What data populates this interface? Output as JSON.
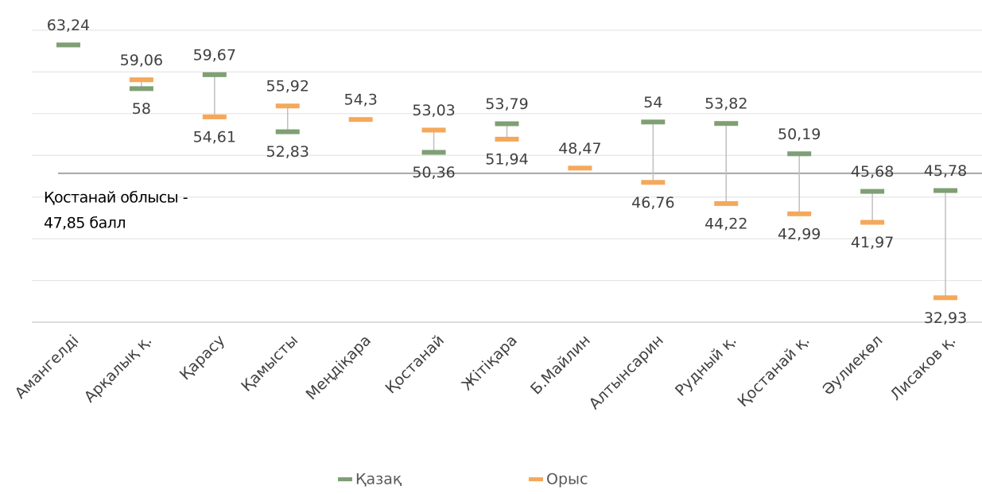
{
  "chart_data": {
    "type": "range_dot",
    "categories": [
      "Амангелді",
      "Арқалық қ.",
      "Қарасу",
      "Қамысты",
      "Меңдіқара",
      "Қостанай",
      "Жітіқара",
      "Б.Майлин",
      "Алтынсарин",
      "Рудный қ.",
      "Қостанай қ.",
      "Әулиекөл",
      "Лисаков қ."
    ],
    "series": [
      {
        "name": "Қазақ",
        "color": "#7f9f74",
        "values": [
          63.24,
          58,
          59.67,
          52.83,
          null,
          50.36,
          53.79,
          null,
          54,
          53.82,
          50.19,
          45.68,
          45.78
        ],
        "value_labels": [
          "63,24",
          "58",
          "59,67",
          "52,83",
          null,
          "50,36",
          "53,79",
          null,
          "54",
          "53,82",
          "50,19",
          "45,68",
          "45,78"
        ]
      },
      {
        "name": "Орыс",
        "color": "#f5a85a",
        "values": [
          null,
          59.06,
          54.61,
          55.92,
          54.3,
          53.03,
          51.94,
          48.47,
          46.76,
          44.22,
          42.99,
          41.97,
          32.93
        ],
        "value_labels": [
          null,
          "59,06",
          "54,61",
          "55,92",
          "54,3",
          "53,03",
          "51,94",
          "48,47",
          "46,76",
          "44,22",
          "42,99",
          "41,97",
          "32,93"
        ]
      }
    ],
    "reference_line": {
      "value": 47.85,
      "label_lines": [
        "Қостанай облысы -",
        "47,85 балл"
      ]
    },
    "ylim": [
      30,
      65
    ],
    "yticks": [
      30,
      35,
      40,
      45,
      50,
      55,
      60,
      65
    ],
    "grid": true,
    "legend": "bottom"
  }
}
